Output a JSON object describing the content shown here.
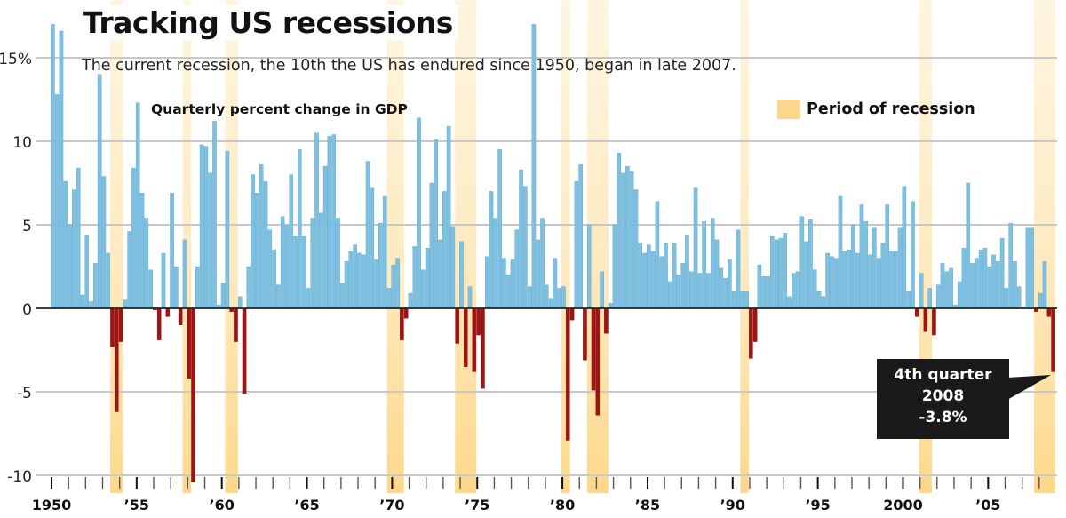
{
  "chart_data": {
    "type": "bar",
    "title": "Tracking US recessions",
    "subtitle": "The current recession, the 10th the US has endured since 1950, began in late 2007.",
    "ylabel": "Quarterly percent change in GDP",
    "xlabel": "",
    "ylim": [
      -10.5,
      18
    ],
    "y_ticks": [
      {
        "value": 15,
        "label": "15%"
      },
      {
        "value": 10,
        "label": "10"
      },
      {
        "value": 5,
        "label": "5"
      },
      {
        "value": 0,
        "label": "0"
      },
      {
        "value": -5,
        "label": "-5"
      },
      {
        "value": -10,
        "label": "-10"
      }
    ],
    "x_start": 1950,
    "x_end": 2009,
    "x_ticks": [
      {
        "year": 1950,
        "label": "1950"
      },
      {
        "year": 1955,
        "label": "’55"
      },
      {
        "year": 1960,
        "label": "’60"
      },
      {
        "year": 1965,
        "label": "’65"
      },
      {
        "year": 1970,
        "label": "’70"
      },
      {
        "year": 1975,
        "label": "’75"
      },
      {
        "year": 1980,
        "label": "’80"
      },
      {
        "year": 1985,
        "label": "’85"
      },
      {
        "year": 1990,
        "label": "’90"
      },
      {
        "year": 1995,
        "label": "’95"
      },
      {
        "year": 2000,
        "label": "2000"
      },
      {
        "year": 2005,
        "label": "’05"
      }
    ],
    "grid": true,
    "legend": {
      "position": "top-right",
      "label": "Period of recession"
    },
    "colors": {
      "positive": "#7fbfdf",
      "positive_edge": "#5aaad2",
      "negative": "#9c1414",
      "recession": "#fdd88a",
      "grid": "#c8c8c8",
      "zero_line": "#222222"
    },
    "recessions": [
      {
        "start": 1953.5,
        "end": 1954.25
      },
      {
        "start": 1957.75,
        "end": 1958.25
      },
      {
        "start": 1960.25,
        "end": 1961.0
      },
      {
        "start": 1969.75,
        "end": 1970.75
      },
      {
        "start": 1973.75,
        "end": 1975.0
      },
      {
        "start": 1980.0,
        "end": 1980.5
      },
      {
        "start": 1981.5,
        "end": 1982.75
      },
      {
        "start": 1990.5,
        "end": 1991.0
      },
      {
        "start": 2001.0,
        "end": 2001.75
      },
      {
        "start": 2007.75,
        "end": 2009.0
      }
    ],
    "quarters_start": "1950 Q1",
    "series": [
      {
        "name": "Quarterly percent change in GDP",
        "values": [
          17.0,
          12.8,
          16.6,
          7.6,
          5.0,
          7.1,
          8.4,
          0.8,
          4.4,
          0.4,
          2.7,
          14.0,
          7.9,
          3.3,
          -2.3,
          -6.2,
          -2.0,
          0.5,
          4.6,
          8.4,
          12.3,
          6.9,
          5.4,
          2.3,
          -0.1,
          -1.9,
          3.3,
          -0.5,
          6.9,
          2.5,
          -1.0,
          4.1,
          -4.2,
          -10.4,
          2.5,
          9.8,
          9.7,
          8.1,
          11.2,
          0.2,
          1.5,
          9.4,
          -0.2,
          -2.0,
          0.7,
          -5.1,
          2.5,
          8.0,
          6.9,
          8.6,
          7.6,
          4.7,
          3.5,
          1.4,
          5.5,
          5.0,
          8.0,
          4.3,
          9.5,
          4.3,
          1.2,
          5.4,
          10.5,
          5.7,
          8.5,
          10.3,
          10.4,
          5.4,
          1.5,
          2.8,
          3.4,
          3.8,
          3.3,
          3.2,
          8.8,
          7.2,
          2.9,
          5.1,
          6.7,
          1.2,
          2.6,
          3.0,
          -1.9,
          -0.6,
          0.9,
          3.7,
          11.4,
          2.3,
          3.6,
          7.5,
          10.1,
          4.1,
          7.0,
          10.9,
          4.9,
          -2.1,
          4.0,
          -3.5,
          1.3,
          -3.8,
          -1.6,
          -4.8,
          3.1,
          7.0,
          5.4,
          9.5,
          3.0,
          2.0,
          2.9,
          4.7,
          8.3,
          7.3,
          1.3,
          17.0,
          4.1,
          5.4,
          1.4,
          0.6,
          3.0,
          1.2,
          1.3,
          -7.9,
          -0.7,
          7.6,
          8.6,
          -3.1,
          5.0,
          -4.9,
          -6.4,
          2.2,
          -1.5,
          0.3,
          5.0,
          9.3,
          8.1,
          8.5,
          8.2,
          7.1,
          3.9,
          3.3,
          3.8,
          3.4,
          6.4,
          3.1,
          3.9,
          1.6,
          3.9,
          2.0,
          2.7,
          4.4,
          2.2,
          7.2,
          2.1,
          5.2,
          2.1,
          5.4,
          4.1,
          2.4,
          1.8,
          2.9,
          1.0,
          4.7,
          1.0,
          1.0,
          -3.0,
          -2.0,
          2.6,
          1.9,
          1.9,
          4.3,
          4.1,
          4.2,
          4.5,
          0.7,
          2.1,
          2.2,
          5.5,
          4.0,
          5.3,
          2.3,
          1.0,
          0.7,
          3.3,
          3.1,
          3.0,
          6.7,
          3.4,
          3.5,
          5.0,
          3.3,
          6.2,
          5.2,
          3.2,
          4.8,
          3.0,
          3.9,
          6.2,
          3.4,
          3.4,
          4.8,
          7.3,
          1.0,
          6.4,
          -0.5,
          2.1,
          -1.4,
          1.2,
          -1.6,
          1.4,
          2.7,
          2.2,
          2.4,
          0.2,
          1.6,
          3.6,
          7.5,
          2.7,
          3.0,
          3.5,
          3.6,
          2.5,
          3.2,
          2.8,
          4.2,
          1.2,
          5.1,
          2.8,
          1.3,
          0.1,
          4.8,
          4.8,
          -0.2,
          0.9,
          2.8,
          -0.5,
          -3.8
        ]
      }
    ],
    "annotation": {
      "lines": [
        "4th quarter",
        "2008",
        "-3.8%"
      ],
      "target": "2008 Q4",
      "value": -3.8
    }
  }
}
